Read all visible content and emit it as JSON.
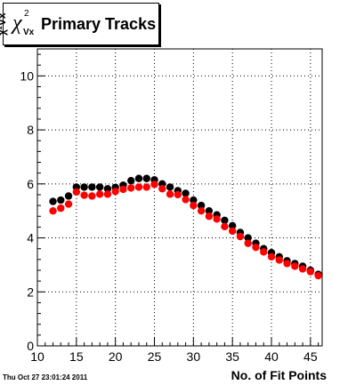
{
  "title": {
    "symbol": "χ",
    "symbol_sup": "2",
    "symbol_sub": "Vx",
    "text": "Primary Tracks"
  },
  "timestamp": "Thu Oct 27 23:01:24 2011",
  "chart_data": {
    "type": "scatter",
    "xlabel": "No. of Fit Points",
    "ylabel": "χ²Vx",
    "xlim": [
      10,
      46.5
    ],
    "ylim": [
      0,
      11
    ],
    "x_ticks": [
      10,
      15,
      20,
      25,
      30,
      35,
      40,
      45
    ],
    "y_ticks": [
      0,
      2,
      4,
      6,
      8,
      10
    ],
    "grid": true,
    "series": [
      {
        "color": "#000000",
        "x": [
          12,
          13,
          14,
          15,
          16,
          17,
          18,
          19,
          20,
          21,
          22,
          23,
          24,
          25,
          26,
          27,
          28,
          29,
          30,
          31,
          32,
          33,
          34,
          35,
          36,
          37,
          38,
          39,
          40,
          41,
          42,
          43,
          44,
          45,
          46
        ],
        "y": [
          5.35,
          5.4,
          5.55,
          5.88,
          5.88,
          5.88,
          5.88,
          5.82,
          5.87,
          5.95,
          6.12,
          6.2,
          6.2,
          6.15,
          6.0,
          5.88,
          5.75,
          5.65,
          5.4,
          5.2,
          5.0,
          4.85,
          4.65,
          4.45,
          4.2,
          4.0,
          3.8,
          3.6,
          3.45,
          3.3,
          3.15,
          3.05,
          2.95,
          2.8,
          2.65
        ]
      },
      {
        "color": "#ff0000",
        "x": [
          12,
          13,
          14,
          15,
          16,
          17,
          18,
          19,
          20,
          21,
          22,
          23,
          24,
          25,
          26,
          27,
          28,
          29,
          30,
          31,
          32,
          33,
          34,
          35,
          36,
          37,
          38,
          39,
          40,
          41,
          42,
          43,
          44,
          45,
          46
        ],
        "y": [
          5.0,
          5.1,
          5.25,
          5.7,
          5.58,
          5.55,
          5.62,
          5.62,
          5.72,
          5.8,
          5.85,
          5.88,
          5.88,
          5.98,
          5.82,
          5.62,
          5.6,
          5.42,
          5.2,
          5.0,
          4.8,
          4.7,
          4.42,
          4.25,
          4.05,
          3.8,
          3.65,
          3.48,
          3.3,
          3.18,
          3.05,
          2.95,
          2.85,
          2.75,
          2.6
        ]
      }
    ]
  }
}
